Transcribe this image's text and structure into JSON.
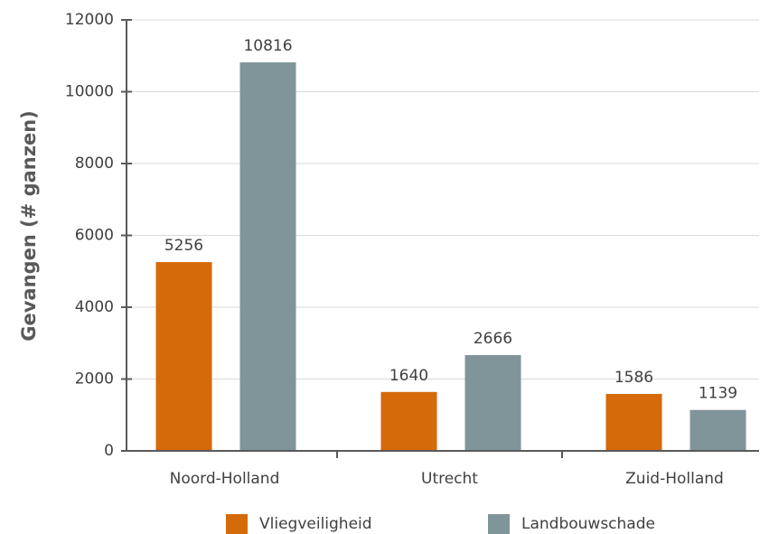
{
  "chart_data": {
    "type": "bar",
    "y_label": "Gevangen (# ganzen)",
    "categories": [
      "Noord-Holland",
      "Utrecht",
      "Zuid-Holland"
    ],
    "series": [
      {
        "name": "Vliegveiligheid",
        "color": "#d46a0a",
        "values": [
          5256,
          1640,
          1586
        ]
      },
      {
        "name": "Landbouwschade",
        "color": "#7f9599",
        "values": [
          10816,
          2666,
          1139
        ]
      }
    ],
    "ylim": [
      0,
      12000
    ],
    "yticks": [
      0,
      2000,
      4000,
      6000,
      8000,
      10000,
      12000
    ],
    "grid": true,
    "legend": "bottom"
  }
}
